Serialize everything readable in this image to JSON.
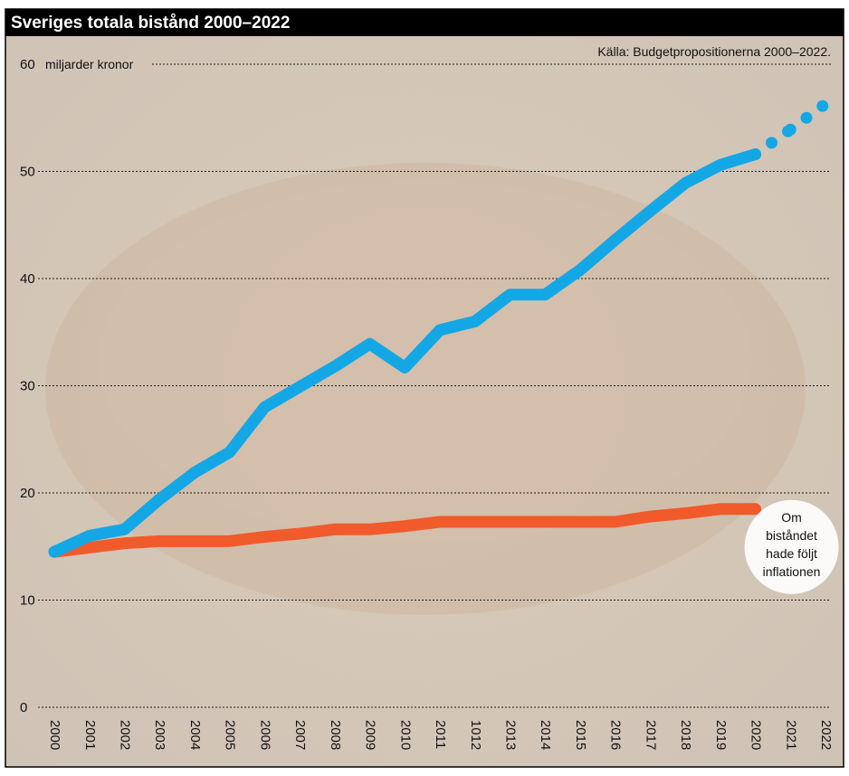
{
  "chart_data": {
    "type": "line",
    "title": "Sveriges totala bistånd 2000–2022",
    "source": "Källa: Budgetpropositionerna 2000–2022.",
    "y_label": "miljarder kronor",
    "categories": [
      "2000",
      "2001",
      "2002",
      "2003",
      "2004",
      "2005",
      "2006",
      "2007",
      "2008",
      "2009",
      "2010",
      "2011",
      "1012",
      "2013",
      "2014",
      "2015",
      "2016",
      "2017",
      "2018",
      "2019",
      "2020",
      "2021",
      "2022"
    ],
    "series": [
      {
        "color": "#14a7e6",
        "values": [
          14.5,
          16.0,
          16.6,
          19.4,
          21.9,
          23.8,
          28.0,
          29.9,
          31.8,
          33.9,
          31.7,
          35.2,
          36.0,
          38.5,
          38.5,
          40.8,
          43.6,
          46.3,
          48.9,
          50.6,
          51.6,
          null,
          null
        ]
      },
      {
        "color": "#14a7e6",
        "dotted": true,
        "values": [
          null,
          null,
          null,
          null,
          null,
          null,
          null,
          null,
          null,
          null,
          null,
          null,
          null,
          null,
          null,
          null,
          null,
          null,
          null,
          null,
          null,
          53.9,
          56.3
        ]
      },
      {
        "color": "#f15a2b",
        "label": [
          "Om",
          "biståndet",
          "hade följt",
          "inflationen"
        ],
        "values": [
          14.5,
          14.9,
          15.3,
          15.5,
          15.5,
          15.5,
          15.9,
          16.2,
          16.6,
          16.6,
          16.9,
          17.3,
          17.3,
          17.3,
          17.3,
          17.3,
          17.3,
          17.8,
          18.1,
          18.5,
          18.5,
          null,
          null
        ]
      }
    ],
    "ylim": [
      0,
      60
    ],
    "yticks": [
      0,
      10,
      20,
      30,
      40,
      50,
      60
    ],
    "grid": true
  }
}
